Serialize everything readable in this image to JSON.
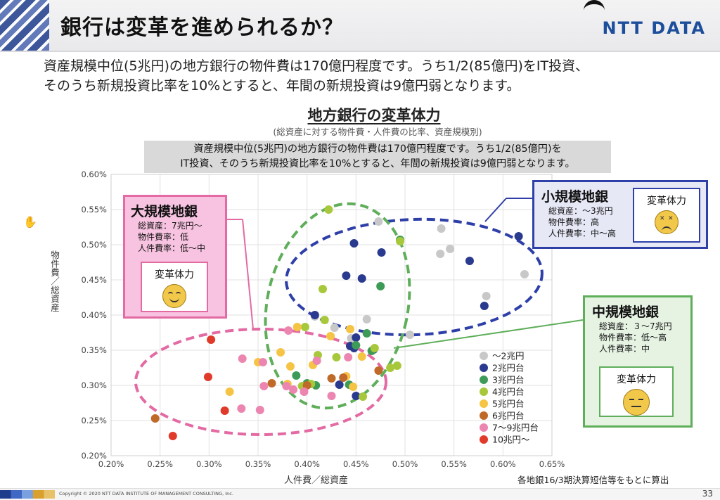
{
  "header": {
    "title": "銀行は変革を進められるか？",
    "logo": "NTT DATA"
  },
  "intro": {
    "line1": "資産規模中位(5兆円)の地方銀行の物件費は170億円程度です。うち1/2(85億円)をIT投資、",
    "line2": "そのうち新規投資比率を10%とすると、年間の新規投資は9億円弱となります。"
  },
  "chart_title": "地方銀行の変革体力",
  "chart_subtitle": "(総資産に対する物件費・人件費の比率、資産規模別)",
  "note": {
    "line1": "資産規模中位(5兆円)の地方銀行の物件費は170億円程度です。うち1/2(85億円)を",
    "line2": "IT投資、そのうち新規投資比率を10%とすると、年間の新規投資は9億円弱となります。"
  },
  "callouts": {
    "large": {
      "title": "大規模地銀",
      "lines": [
        "総資産：7兆円～",
        "物件費率：低",
        "人件費率：低～中"
      ],
      "face_label": "変革体力"
    },
    "small": {
      "title": "小規模地銀",
      "lines": [
        "総資産：～3兆円",
        "物件費率：高",
        "人件費率：中～高"
      ],
      "face_label": "変革体力"
    },
    "mid": {
      "title": "中規模地銀",
      "lines": [
        "総資産：３～7兆円",
        "物件費率：低～高",
        "人件費率：中"
      ],
      "face_label": "変革体力"
    }
  },
  "source_note": "各地銀16/3期決算短信等をもとに算出",
  "footer": {
    "copyright": "Copyright © 2020 NTT DATA INSTITUTE OF MANAGEMENT CONSULTING, Inc.",
    "page": "33"
  },
  "colors": {
    "s1": "#c8c8c8",
    "s2": "#2a3a8e",
    "s3": "#3e9b57",
    "s4": "#a8c83c",
    "s5": "#f6c444",
    "s6": "#c06a2a",
    "s7": "#ec86b0",
    "s8": "#e03a2a"
  },
  "chart_data": {
    "type": "scatter",
    "xlabel": "人件費／総資産",
    "ylabel": "物件費／総資産",
    "xlim": [
      0.2,
      0.65
    ],
    "ylim": [
      0.2,
      0.6
    ],
    "x_ticks": [
      "0.20%",
      "0.25%",
      "0.30%",
      "0.35%",
      "0.40%",
      "0.45%",
      "0.50%",
      "0.55%",
      "0.60%",
      "0.65%"
    ],
    "y_ticks": [
      "0.20%",
      "0.25%",
      "0.30%",
      "0.35%",
      "0.40%",
      "0.45%",
      "0.50%",
      "0.55%",
      "0.60%"
    ],
    "grid": true,
    "legend_position": "bottom-right",
    "series": [
      {
        "name": "～2兆円",
        "color": "#c8c8c8",
        "points": [
          [
            0.473,
            0.533
          ],
          [
            0.537,
            0.523
          ],
          [
            0.546,
            0.494
          ],
          [
            0.536,
            0.487
          ],
          [
            0.622,
            0.458
          ],
          [
            0.583,
            0.427
          ],
          [
            0.408,
            0.398
          ],
          [
            0.428,
            0.382
          ],
          [
            0.461,
            0.394
          ],
          [
            0.505,
            0.372
          ],
          [
            0.445,
            0.367
          ]
        ]
      },
      {
        "name": "2兆円台",
        "color": "#2a3a8e",
        "points": [
          [
            0.616,
            0.512
          ],
          [
            0.448,
            0.502
          ],
          [
            0.476,
            0.489
          ],
          [
            0.566,
            0.477
          ],
          [
            0.44,
            0.456
          ],
          [
            0.456,
            0.452
          ],
          [
            0.408,
            0.4
          ],
          [
            0.581,
            0.413
          ],
          [
            0.45,
            0.368
          ],
          [
            0.444,
            0.356
          ],
          [
            0.448,
            0.353
          ],
          [
            0.468,
            0.351
          ],
          [
            0.433,
            0.301
          ],
          [
            0.45,
            0.285
          ]
        ]
      },
      {
        "name": "3兆円台",
        "color": "#3e9b57",
        "points": [
          [
            0.495,
            0.507
          ],
          [
            0.475,
            0.441
          ],
          [
            0.461,
            0.374
          ],
          [
            0.45,
            0.357
          ],
          [
            0.466,
            0.349
          ],
          [
            0.389,
            0.314
          ],
          [
            0.4,
            0.303
          ],
          [
            0.409,
            0.3
          ],
          [
            0.443,
            0.301
          ]
        ]
      },
      {
        "name": "4兆円台",
        "color": "#a8c83c",
        "points": [
          [
            0.422,
            0.55
          ],
          [
            0.495,
            0.505
          ],
          [
            0.416,
            0.437
          ],
          [
            0.418,
            0.393
          ],
          [
            0.398,
            0.383
          ],
          [
            0.411,
            0.343
          ],
          [
            0.43,
            0.34
          ],
          [
            0.469,
            0.353
          ],
          [
            0.395,
            0.299
          ],
          [
            0.404,
            0.302
          ],
          [
            0.457,
            0.284
          ],
          [
            0.485,
            0.325
          ],
          [
            0.492,
            0.328
          ]
        ]
      },
      {
        "name": "5兆円台",
        "color": "#f6c444",
        "points": [
          [
            0.39,
            0.383
          ],
          [
            0.424,
            0.37
          ],
          [
            0.444,
            0.38
          ],
          [
            0.35,
            0.333
          ],
          [
            0.373,
            0.347
          ],
          [
            0.383,
            0.327
          ],
          [
            0.406,
            0.329
          ],
          [
            0.44,
            0.313
          ],
          [
            0.447,
            0.298
          ],
          [
            0.456,
            0.341
          ],
          [
            0.321,
            0.291
          ],
          [
            0.38,
            0.302
          ]
        ]
      },
      {
        "name": "6兆円台",
        "color": "#c06a2a",
        "points": [
          [
            0.245,
            0.253
          ],
          [
            0.364,
            0.303
          ],
          [
            0.4,
            0.3
          ],
          [
            0.425,
            0.31
          ],
          [
            0.437,
            0.311
          ],
          [
            0.473,
            0.321
          ]
        ]
      },
      {
        "name": "7～9兆円台",
        "color": "#ec86b0",
        "points": [
          [
            0.334,
            0.338
          ],
          [
            0.355,
            0.333
          ],
          [
            0.356,
            0.299
          ],
          [
            0.379,
            0.299
          ],
          [
            0.386,
            0.294
          ],
          [
            0.397,
            0.291
          ],
          [
            0.425,
            0.285
          ],
          [
            0.381,
            0.378
          ],
          [
            0.333,
            0.267
          ],
          [
            0.352,
            0.265
          ],
          [
            0.41,
            0.335
          ],
          [
            0.442,
            0.34
          ]
        ]
      },
      {
        "name": "10兆円～",
        "color": "#e03a2a",
        "points": [
          [
            0.302,
            0.365
          ],
          [
            0.299,
            0.312
          ],
          [
            0.316,
            0.264
          ],
          [
            0.263,
            0.228
          ]
        ]
      }
    ],
    "annotations": [
      "大規模地銀",
      "小規模地銀",
      "中規模地銀"
    ]
  }
}
